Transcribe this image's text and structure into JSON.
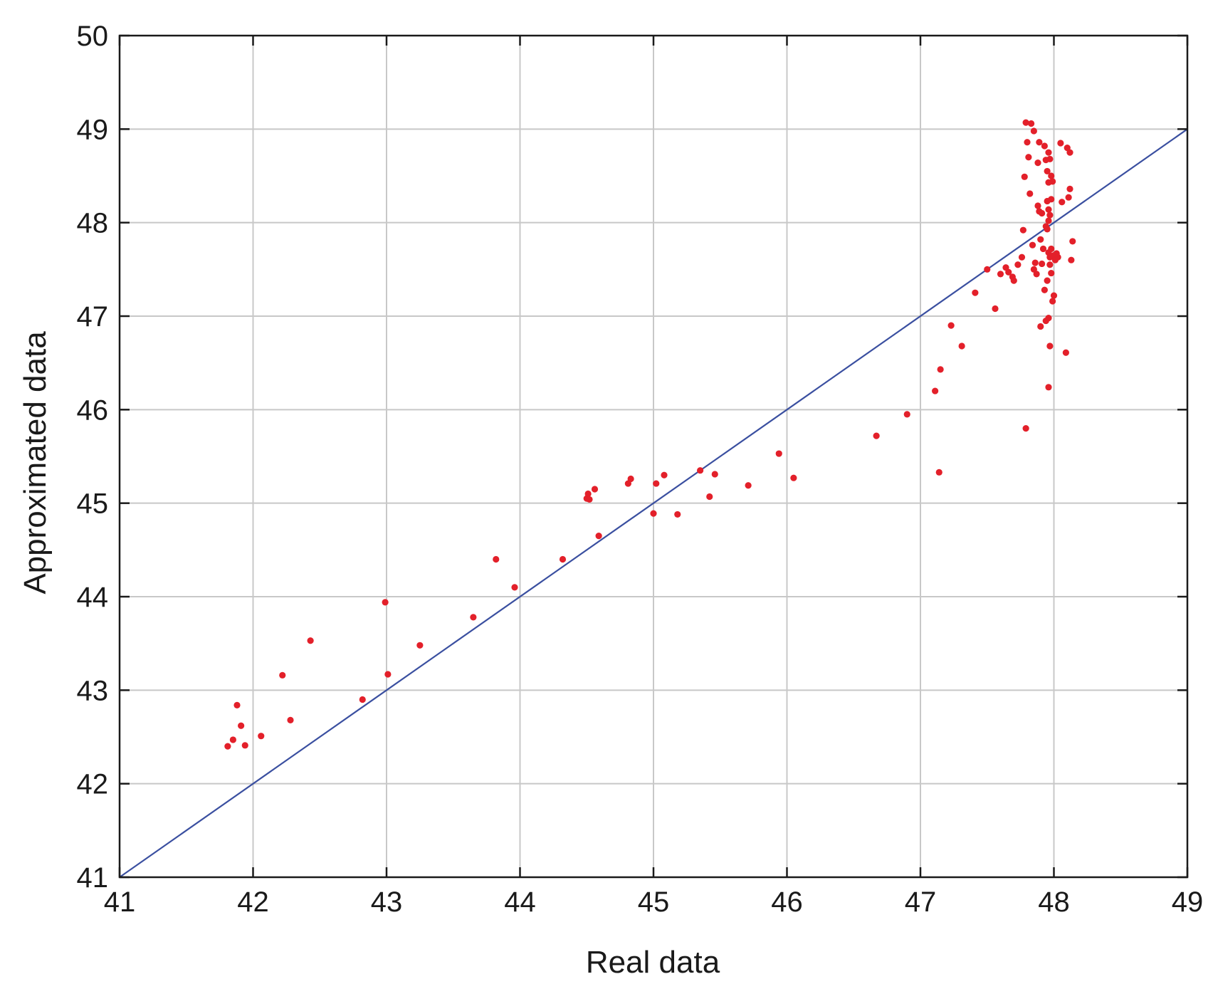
{
  "chart_data": {
    "type": "scatter",
    "title": "",
    "xlabel": "Real data",
    "ylabel": "Approximated data",
    "xlim": [
      41,
      49
    ],
    "ylim": [
      41,
      50
    ],
    "xticks": [
      41,
      42,
      43,
      44,
      45,
      46,
      47,
      48,
      49
    ],
    "yticks": [
      41,
      42,
      43,
      44,
      45,
      46,
      47,
      48,
      49,
      50
    ],
    "grid": true,
    "colors": {
      "points": "#e3202a",
      "line": "#3a4fa0",
      "grid": "#c8c8c8",
      "axes": "#1a1a1a"
    },
    "reference_line": {
      "x": [
        41,
        49
      ],
      "y": [
        41,
        49
      ]
    },
    "series": [
      {
        "points": [
          [
            41.81,
            42.4
          ],
          [
            41.85,
            42.47
          ],
          [
            41.88,
            42.84
          ],
          [
            41.91,
            42.62
          ],
          [
            41.94,
            42.41
          ],
          [
            42.06,
            42.51
          ],
          [
            42.22,
            43.16
          ],
          [
            42.28,
            42.68
          ],
          [
            42.43,
            43.53
          ],
          [
            42.82,
            42.9
          ],
          [
            42.99,
            43.94
          ],
          [
            43.01,
            43.17
          ],
          [
            43.25,
            43.48
          ],
          [
            43.65,
            43.78
          ],
          [
            43.82,
            44.4
          ],
          [
            43.96,
            44.1
          ],
          [
            44.32,
            44.4
          ],
          [
            44.5,
            45.05
          ],
          [
            44.51,
            45.1
          ],
          [
            44.52,
            45.04
          ],
          [
            44.56,
            45.15
          ],
          [
            44.59,
            44.65
          ],
          [
            44.81,
            45.21
          ],
          [
            44.83,
            45.26
          ],
          [
            45.0,
            44.89
          ],
          [
            45.02,
            45.21
          ],
          [
            45.08,
            45.3
          ],
          [
            45.18,
            44.88
          ],
          [
            45.35,
            45.35
          ],
          [
            45.42,
            45.07
          ],
          [
            45.46,
            45.31
          ],
          [
            45.71,
            45.19
          ],
          [
            45.94,
            45.53
          ],
          [
            46.05,
            45.27
          ],
          [
            46.67,
            45.72
          ],
          [
            46.9,
            45.95
          ],
          [
            47.11,
            46.2
          ],
          [
            47.14,
            45.33
          ],
          [
            47.15,
            46.43
          ],
          [
            47.23,
            46.9
          ],
          [
            47.31,
            46.68
          ],
          [
            47.41,
            47.25
          ],
          [
            47.5,
            47.5
          ],
          [
            47.56,
            47.08
          ],
          [
            47.6,
            47.45
          ],
          [
            47.64,
            47.52
          ],
          [
            47.66,
            47.47
          ],
          [
            47.69,
            47.42
          ],
          [
            47.7,
            47.38
          ],
          [
            47.73,
            47.55
          ],
          [
            47.76,
            47.63
          ],
          [
            47.77,
            47.92
          ],
          [
            47.78,
            48.49
          ],
          [
            47.79,
            45.8
          ],
          [
            47.79,
            49.07
          ],
          [
            47.8,
            48.86
          ],
          [
            47.81,
            48.7
          ],
          [
            47.82,
            48.31
          ],
          [
            47.83,
            49.06
          ],
          [
            47.84,
            47.76
          ],
          [
            47.85,
            48.98
          ],
          [
            47.85,
            47.5
          ],
          [
            47.86,
            47.57
          ],
          [
            47.87,
            47.45
          ],
          [
            47.88,
            48.18
          ],
          [
            47.88,
            48.64
          ],
          [
            47.89,
            48.86
          ],
          [
            47.89,
            48.12
          ],
          [
            47.9,
            47.82
          ],
          [
            47.9,
            46.89
          ],
          [
            47.91,
            48.1
          ],
          [
            47.91,
            47.56
          ],
          [
            47.92,
            47.72
          ],
          [
            47.93,
            48.82
          ],
          [
            47.93,
            47.28
          ],
          [
            47.94,
            48.67
          ],
          [
            47.94,
            47.96
          ],
          [
            47.94,
            46.95
          ],
          [
            47.95,
            48.55
          ],
          [
            47.95,
            48.23
          ],
          [
            47.95,
            47.93
          ],
          [
            47.95,
            47.38
          ],
          [
            47.96,
            48.75
          ],
          [
            47.96,
            48.43
          ],
          [
            47.96,
            48.14
          ],
          [
            47.96,
            48.02
          ],
          [
            47.96,
            47.68
          ],
          [
            47.96,
            46.98
          ],
          [
            47.96,
            46.24
          ],
          [
            47.97,
            48.68
          ],
          [
            47.97,
            48.08
          ],
          [
            47.97,
            47.63
          ],
          [
            47.97,
            47.55
          ],
          [
            47.97,
            46.68
          ],
          [
            47.98,
            48.5
          ],
          [
            47.98,
            48.25
          ],
          [
            47.98,
            47.72
          ],
          [
            47.98,
            47.46
          ],
          [
            47.99,
            47.16
          ],
          [
            47.99,
            48.44
          ],
          [
            48.0,
            47.22
          ],
          [
            48.0,
            47.65
          ],
          [
            48.01,
            47.6
          ],
          [
            48.02,
            47.67
          ],
          [
            48.03,
            47.63
          ],
          [
            48.05,
            48.85
          ],
          [
            48.06,
            48.22
          ],
          [
            48.09,
            46.61
          ],
          [
            48.1,
            48.8
          ],
          [
            48.11,
            48.27
          ],
          [
            48.12,
            48.75
          ],
          [
            48.12,
            48.36
          ],
          [
            48.13,
            47.6
          ],
          [
            48.14,
            47.8
          ]
        ]
      }
    ]
  }
}
